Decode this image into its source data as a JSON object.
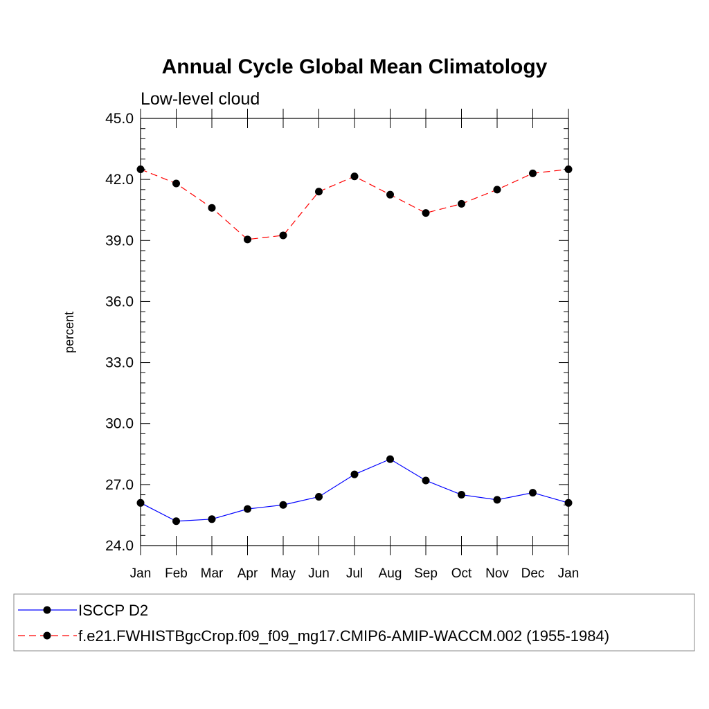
{
  "chart_data": {
    "type": "line",
    "title": "Annual Cycle Global Mean Climatology",
    "subtitle": "Low-level cloud",
    "ylabel": "percent",
    "xlabel": "",
    "categories": [
      "Jan",
      "Feb",
      "Mar",
      "Apr",
      "May",
      "Jun",
      "Jul",
      "Aug",
      "Sep",
      "Oct",
      "Nov",
      "Dec",
      "Jan"
    ],
    "ylim": [
      24.0,
      45.0
    ],
    "yticks": [
      "24.0",
      "27.0",
      "30.0",
      "33.0",
      "36.0",
      "39.0",
      "42.0",
      "45.0"
    ],
    "grid": false,
    "legend_placement": "bottom",
    "series": [
      {
        "name": "ISCCP D2",
        "color": "#0000ff",
        "dash": "solid",
        "marker": "filled-circle",
        "values": [
          26.1,
          25.2,
          25.3,
          25.8,
          26.0,
          26.4,
          27.5,
          28.25,
          27.2,
          26.5,
          26.25,
          26.6,
          26.1
        ]
      },
      {
        "name": "f.e21.FWHISTBgcCrop.f09_f09_mg17.CMIP6-AMIP-WACCM.002 (1955-1984)",
        "color": "#ff0000",
        "dash": "dashed",
        "marker": "filled-circle",
        "values": [
          42.5,
          41.8,
          40.6,
          39.05,
          39.25,
          41.4,
          42.15,
          41.25,
          40.35,
          40.8,
          41.5,
          42.3,
          42.5
        ]
      }
    ]
  }
}
